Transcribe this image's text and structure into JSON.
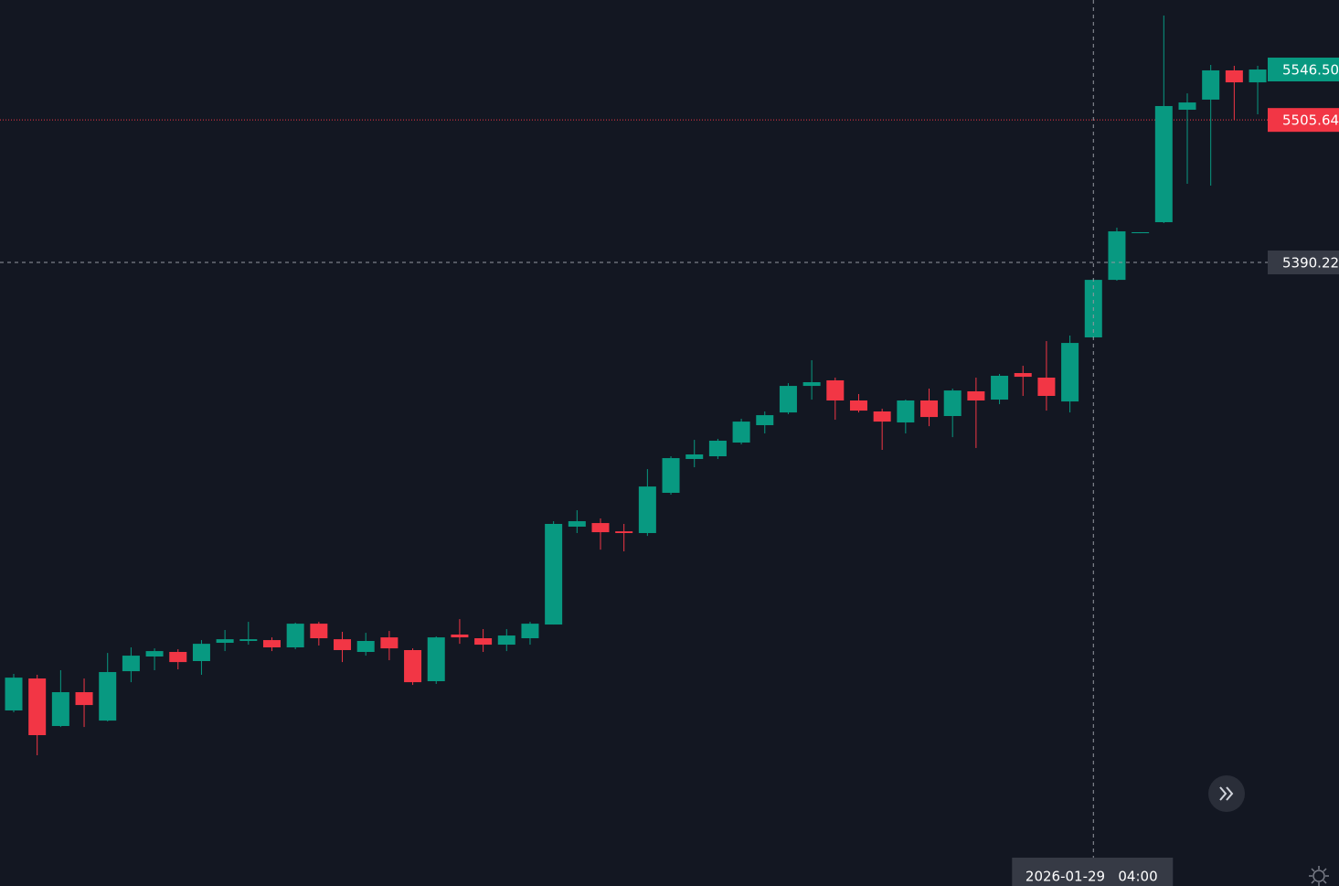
{
  "chart_data": {
    "type": "candlestick",
    "categories": [
      null,
      null,
      null,
      null,
      null,
      null,
      null,
      null,
      null,
      null,
      null,
      null,
      null,
      null,
      null,
      null,
      null,
      null,
      null,
      null,
      null,
      null,
      null,
      null,
      null,
      null,
      null,
      null,
      null,
      null,
      null,
      null,
      null,
      null,
      null,
      null,
      null,
      null,
      null,
      null,
      null,
      null,
      null,
      null,
      null,
      null,
      "2026-01-29   04:00",
      null,
      null,
      null,
      null,
      null,
      null,
      null
    ],
    "open": [
      5027.3,
      5053.2,
      5014.7,
      5042.1,
      5019.1,
      5059.1,
      5071.0,
      5074.7,
      5067.3,
      5082.1,
      5083.6,
      5084.3,
      5078.4,
      5097.6,
      5085.0,
      5074.7,
      5086.5,
      5076.2,
      5051.0,
      5088.8,
      5085.8,
      5080.6,
      5085.8,
      5096.9,
      5176.2,
      5179.1,
      5172.4,
      5171.0,
      5203.6,
      5231.0,
      5233.2,
      5244.3,
      5258.4,
      5268.7,
      5290.2,
      5294.7,
      5278.4,
      5269.5,
      5260.6,
      5278.4,
      5265.8,
      5285.8,
      5279.1,
      5300.6,
      5296.9,
      5277.6,
      5329.5,
      5376.1,
      5413.9,
      5422.8,
      5513.9,
      5522.1,
      5545.8,
      5536.1
    ],
    "high": [
      5056.9,
      5056.2,
      5059.9,
      5053.2,
      5073.9,
      5078.4,
      5077.6,
      5076.9,
      5084.3,
      5092.5,
      5099.1,
      5086.5,
      5098.4,
      5099.1,
      5091.0,
      5090.2,
      5091.7,
      5077.6,
      5087.3,
      5101.3,
      5093.2,
      5093.2,
      5099.1,
      5180.6,
      5189.5,
      5182.8,
      5178.4,
      5222.8,
      5233.2,
      5246.5,
      5247.3,
      5263.6,
      5269.5,
      5292.4,
      5311.0,
      5296.9,
      5283.6,
      5271.7,
      5279.1,
      5288.0,
      5288.0,
      5296.9,
      5299.9,
      5306.5,
      5326.5,
      5331.0,
      5376.9,
      5418.4,
      5414.7,
      5590.2,
      5527.2,
      5550.2,
      5549.5,
      5549.5
    ],
    "low": [
      5025.8,
      4991.0,
      5013.9,
      5013.9,
      5018.4,
      5050.2,
      5059.9,
      5060.6,
      5056.2,
      5075.4,
      5080.6,
      5075.4,
      5076.9,
      5079.9,
      5066.5,
      5071.7,
      5068.0,
      5048.0,
      5048.8,
      5081.3,
      5074.7,
      5075.4,
      5080.6,
      5096.9,
      5171.0,
      5157.6,
      5156.2,
      5168.7,
      5202.1,
      5224.3,
      5231.0,
      5242.8,
      5251.7,
      5267.3,
      5279.1,
      5262.8,
      5268.7,
      5238.4,
      5251.7,
      5257.6,
      5248.7,
      5239.9,
      5275.4,
      5282.1,
      5270.2,
      5268.7,
      5328.7,
      5375.4,
      5413.9,
      5422.1,
      5453.9,
      5452.4,
      5505.8,
      5510.2
    ],
    "close": [
      5053.9,
      5007.3,
      5042.1,
      5031.7,
      5058.4,
      5071.7,
      5075.4,
      5066.5,
      5081.3,
      5085.0,
      5085.0,
      5078.4,
      5097.6,
      5085.8,
      5076.2,
      5083.6,
      5077.6,
      5050.2,
      5086.5,
      5086.5,
      5080.6,
      5088.0,
      5097.6,
      5178.4,
      5180.6,
      5171.7,
      5171.0,
      5208.7,
      5231.7,
      5234.7,
      5245.8,
      5261.3,
      5266.5,
      5290.2,
      5293.2,
      5278.4,
      5270.2,
      5261.3,
      5278.4,
      5265.0,
      5286.5,
      5278.4,
      5298.4,
      5297.6,
      5282.1,
      5325.0,
      5376.1,
      5415.4,
      5414.7,
      5516.9,
      5519.8,
      5545.8,
      5536.1,
      5546.5
    ],
    "up_color": "#089981",
    "down_color": "#f23645",
    "ylim": [
      4885.1,
      5602.8
    ],
    "last_price": {
      "value": 5546.5,
      "label": "5546.50",
      "color": "#089981"
    },
    "price_line": {
      "value": 5505.64,
      "label": "5505.64",
      "color": "#f23645"
    },
    "crosshair": {
      "value": 5390.22,
      "label": "5390.22"
    }
  }
}
